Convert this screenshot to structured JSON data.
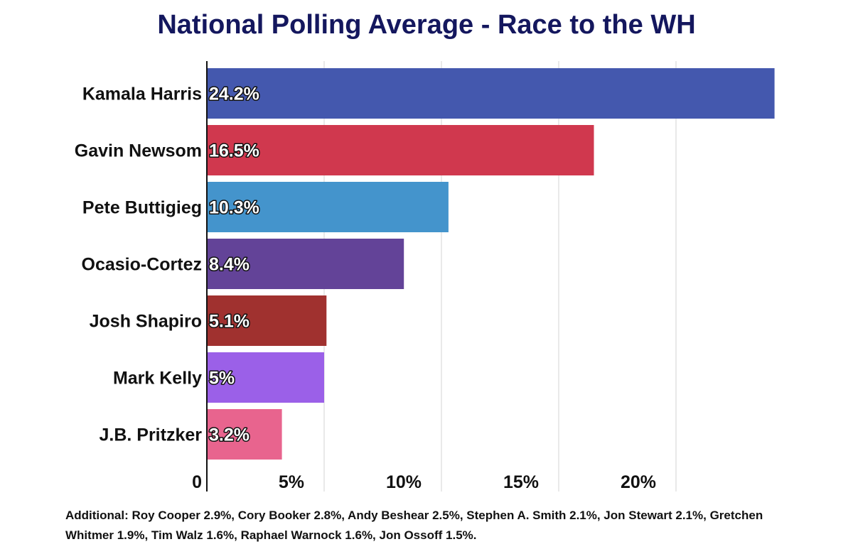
{
  "chart_data": {
    "type": "bar",
    "orientation": "horizontal",
    "title": "National Polling Average - Race to the WH",
    "categories": [
      "Kamala Harris",
      "Gavin Newsom",
      "Pete Buttigieg",
      "Ocasio-Cortez",
      "Josh Shapiro",
      "Mark Kelly",
      "J.B. Pritzker"
    ],
    "values": [
      24.2,
      16.5,
      10.3,
      8.4,
      5.1,
      5,
      3.2
    ],
    "value_labels": [
      "24.2%",
      "16.5%",
      "10.3%",
      "8.4%",
      "5.1%",
      "5%",
      "3.2%"
    ],
    "colors": [
      "#4458ae",
      "#d0384e",
      "#4494cc",
      "#634398",
      "#a0312f",
      "#9b60e8",
      "#e8648e"
    ],
    "xlim": [
      0,
      25
    ],
    "xticks": [
      0,
      5,
      10,
      15,
      20
    ],
    "xtick_labels": [
      "0",
      "5%",
      "10%",
      "15%",
      "20%"
    ],
    "xlabel": "",
    "ylabel": "",
    "grid": true,
    "legend": "none"
  },
  "footnote": "Additional: Roy Cooper 2.9%, Cory Booker 2.8%, Andy Beshear 2.5%, Stephen A. Smith 2.1%, Jon Stewart 2.1%, Gretchen Whitmer 1.9%, Tim Walz 1.6%, Raphael Warnock 1.6%, Jon Ossoff 1.5%."
}
